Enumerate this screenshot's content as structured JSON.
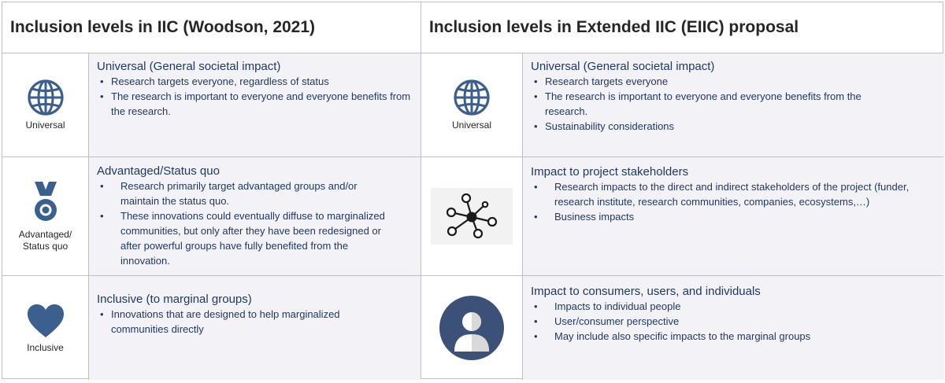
{
  "headers": {
    "left": "Inclusion levels in IIC (Woodson, 2021)",
    "right": "Inclusion levels in Extended IIC (EIIC) proposal"
  },
  "left_rows": [
    {
      "icon": "globe-icon",
      "icon_label": "Universal",
      "title": "Universal (General societal impact)",
      "bullets": [
        "Research targets everyone, regardless of status",
        "The research is important to everyone and everyone benefits from the research."
      ]
    },
    {
      "icon": "medal-icon",
      "icon_label_1": "Advantaged/",
      "icon_label_2": "Status quo",
      "title": "Advantaged/Status quo",
      "bullets": [
        "Research primarily target advantaged groups and/or maintain the status quo.",
        "These innovations could eventually diffuse to marginalized communities, but only after they have been redesigned or after powerful groups have fully benefited from the innovation."
      ]
    },
    {
      "icon": "heart-icon",
      "icon_label": "Inclusive",
      "title": "Inclusive (to marginal groups)",
      "bullets": [
        "Innovations that are designed to help marginalized communities directly"
      ]
    }
  ],
  "right_rows": [
    {
      "icon": "globe-icon",
      "icon_label": "Universal",
      "title": "Universal (General societal impact)",
      "bullets": [
        "Research targets everyone",
        "The research is important to everyone and everyone benefits from the research.",
        "Sustainability considerations"
      ]
    },
    {
      "icon": "network-icon",
      "title": "Impact to project stakeholders",
      "bullets": [
        "Research impacts to the direct and indirect stakeholders of the project (funder, research institute, research communities, companies, ecosystems,…)",
        "Business impacts"
      ]
    },
    {
      "icon": "user-icon",
      "title": "Impact to consumers, users, and individuals",
      "bullets": [
        "Impacts to individual people",
        "User/consumer perspective",
        "May include also specific impacts to the marginal groups"
      ]
    }
  ],
  "colors": {
    "icon_blue": "#3b5f8e",
    "text_navy": "#1f3864",
    "cell_bg": "#f3f3f7",
    "border": "#bfbfbf"
  }
}
